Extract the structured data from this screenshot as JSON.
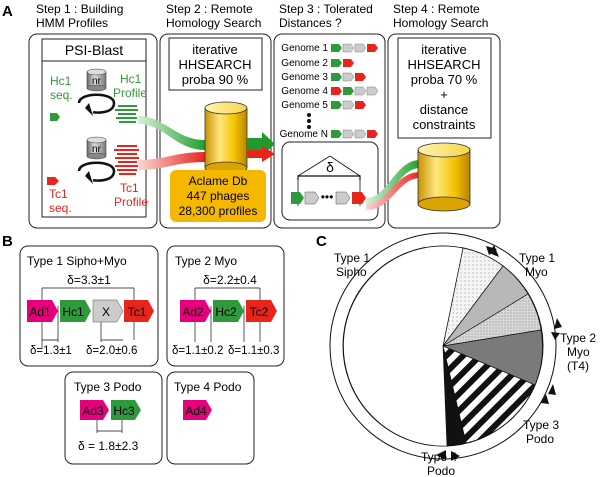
{
  "panel_a": {
    "letter": "A",
    "step1": {
      "title_line1": "Step 1 : Building",
      "title_line2": "HMM Profiles"
    },
    "step2": {
      "title_line1": "Step 2 : Remote",
      "title_line2": "Homology Search"
    },
    "step3": {
      "title_line1": "Step 3 : Tolerated",
      "title_line2": "Distances ?"
    },
    "step4": {
      "title_line1": "Step 4 : Remote",
      "title_line2": "Homology Search"
    },
    "psiblast": "PSI-Blast",
    "hc1_seq_1": "Hc1",
    "hc1_seq_2": "seq.",
    "hc1_prof_1": "Hc1",
    "hc1_prof_2": "Profile",
    "tc1_seq_1": "Tc1",
    "tc1_seq_2": "seq.",
    "tc1_prof_1": "Tc1",
    "tc1_prof_2": "Profile",
    "nr": "nr",
    "search2": {
      "line1": "iterative",
      "line2": "HHSEARCH",
      "line3": "proba 90 %"
    },
    "db": {
      "line1": "Aclame Db",
      "line2": "447 phages",
      "line3": "28,300 profiles"
    },
    "genomes": [
      "Genome 1",
      "Genome 2",
      "Genome 3",
      "Genome 4",
      "Genome 5",
      "Genome N"
    ],
    "delta": "δ",
    "search4": {
      "line1": "iterative",
      "line2": "HHSEARCH",
      "line3": "proba 70 %",
      "line4": "+",
      "line5": "distance",
      "line6": "constraints"
    }
  },
  "panel_b": {
    "letter": "B",
    "type1": {
      "title": "Type 1 Sipho+Myo",
      "top": "δ=3.3±1",
      "genes": [
        "Ad1",
        "Hc1",
        "X",
        "Tc1"
      ],
      "bottom_left": "δ=1.3±1",
      "bottom_right": "δ=2.0±0.6"
    },
    "type2": {
      "title": "Type 2 Myo",
      "top": "δ=2.2±0.4",
      "genes": [
        "Ad2",
        "Hc2",
        "Tc2"
      ],
      "bottom_left": "δ=1.1±0.2",
      "bottom_right": "δ=1.1±0.3"
    },
    "type3": {
      "title": "Type 3 Podo",
      "genes": [
        "Ad3",
        "Hc3"
      ],
      "bottom": "δ = 1.8±2.3"
    },
    "type4": {
      "title": "Type 4 Podo",
      "genes": [
        "Ad4"
      ]
    }
  },
  "panel_c": {
    "letter": "C",
    "labels": {
      "type1_sipho": [
        "Type 1",
        "Sipho"
      ],
      "type1_myo": [
        "Type 1",
        "Myo"
      ],
      "type2": [
        "Type 2",
        "Myo",
        "(T4)"
      ],
      "type3": [
        "Type 3",
        "Podo"
      ],
      "type4": [
        "Type 4",
        "Podo"
      ]
    }
  },
  "colors": {
    "magenta": "#e6007e",
    "green": "#2f9a3c",
    "red": "#e8251c",
    "grey": "#cccccc",
    "db_box": "#f5b800",
    "cylinder": "#f0c419"
  }
}
